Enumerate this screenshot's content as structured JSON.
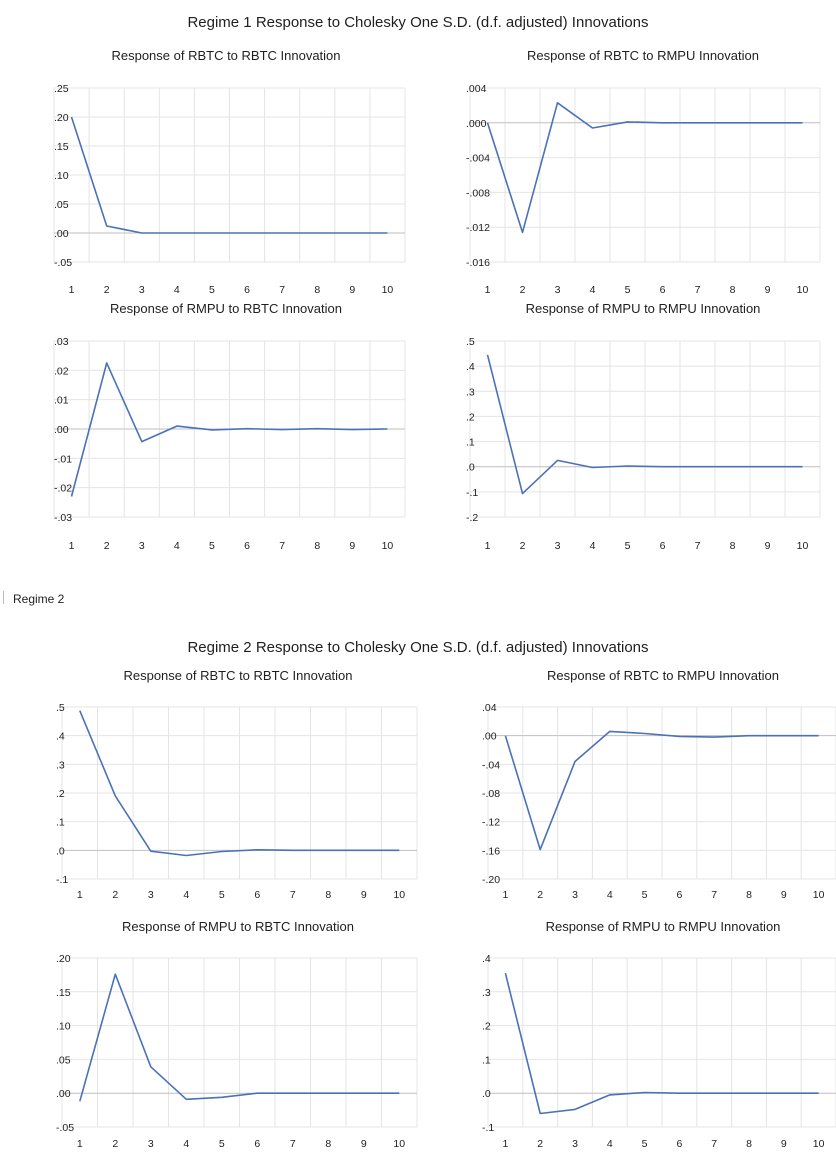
{
  "regime1_title": "Regime 1 Response to Cholesky One S.D. (d.f. adjusted) Innovations",
  "regime2_note": "Regime 2",
  "regime2_title": "Regime 2 Response to Cholesky One S.D. (d.f. adjusted) Innovations",
  "colors": {
    "series_line": "#4a72b8",
    "grid": "#e4e4e4"
  },
  "chart_data": [
    {
      "type": "line",
      "title": "Response of RBTC to RBTC Innovation",
      "x": [
        1,
        2,
        3,
        4,
        5,
        6,
        7,
        8,
        9,
        10
      ],
      "series": [
        {
          "values": [
            0.2,
            0.012,
            0.0,
            0.0,
            0.0,
            0.0,
            0.0,
            0.0,
            0.0,
            0.0
          ]
        }
      ],
      "ylim": [
        -0.05,
        0.25
      ],
      "yticks": [
        0.25,
        0.2,
        0.15,
        0.1,
        0.05,
        0.0,
        -0.05
      ],
      "yticklabels": [
        ".25",
        ".20",
        ".15",
        ".10",
        ".05",
        ".00",
        "-.05"
      ],
      "grid": true
    },
    {
      "type": "line",
      "title": "Response of RBTC to RMPU Innovation",
      "x": [
        1,
        2,
        3,
        4,
        5,
        6,
        7,
        8,
        9,
        10
      ],
      "series": [
        {
          "values": [
            0.0,
            -0.0126,
            0.0023,
            -0.0006,
            0.0001,
            0.0,
            0.0,
            0.0,
            0.0,
            0.0
          ]
        }
      ],
      "ylim": [
        -0.016,
        0.004
      ],
      "yticks": [
        0.004,
        0.0,
        -0.004,
        -0.008,
        -0.012,
        -0.016
      ],
      "yticklabels": [
        ".004",
        ".000",
        "-.004",
        "-.008",
        "-.012",
        "-.016"
      ],
      "grid": true
    },
    {
      "type": "line",
      "title": "Response of RMPU to RBTC Innovation",
      "x": [
        1,
        2,
        3,
        4,
        5,
        6,
        7,
        8,
        9,
        10
      ],
      "series": [
        {
          "values": [
            -0.023,
            0.0225,
            -0.0043,
            0.001,
            -0.0003,
            0.0001,
            -0.0002,
            0.0001,
            -0.0002,
            0.0
          ]
        }
      ],
      "ylim": [
        -0.03,
        0.03
      ],
      "yticks": [
        0.03,
        0.02,
        0.01,
        0.0,
        -0.01,
        -0.02,
        -0.03
      ],
      "yticklabels": [
        ".03",
        ".02",
        ".01",
        ".00",
        "-.01",
        "-.02",
        "-.03"
      ],
      "grid": true
    },
    {
      "type": "line",
      "title": "Response of RMPU to RMPU Innovation",
      "x": [
        1,
        2,
        3,
        4,
        5,
        6,
        7,
        8,
        9,
        10
      ],
      "series": [
        {
          "values": [
            0.445,
            -0.107,
            0.025,
            -0.003,
            0.003,
            0.0,
            0.0,
            0.0,
            0.0,
            0.0
          ]
        }
      ],
      "ylim": [
        -0.2,
        0.5
      ],
      "yticks": [
        0.5,
        0.4,
        0.3,
        0.2,
        0.1,
        0.0,
        -0.1,
        -0.2
      ],
      "yticklabels": [
        ".5",
        ".4",
        ".3",
        ".2",
        ".1",
        ".0",
        "-.1",
        "-.2"
      ],
      "grid": true
    },
    {
      "type": "line",
      "title": "Response of RBTC to RBTC Innovation",
      "x": [
        1,
        2,
        3,
        4,
        5,
        6,
        7,
        8,
        9,
        10
      ],
      "series": [
        {
          "values": [
            0.487,
            0.19,
            -0.003,
            -0.018,
            -0.004,
            0.002,
            0.0,
            0.0,
            0.0,
            0.0
          ]
        }
      ],
      "ylim": [
        -0.1,
        0.5
      ],
      "yticks": [
        0.5,
        0.4,
        0.3,
        0.2,
        0.1,
        0.0,
        -0.1
      ],
      "yticklabels": [
        ".5",
        ".4",
        ".3",
        ".2",
        ".1",
        ".0",
        "-.1"
      ],
      "grid": true
    },
    {
      "type": "line",
      "title": "Response of RBTC to RMPU Innovation",
      "x": [
        1,
        2,
        3,
        4,
        5,
        6,
        7,
        8,
        9,
        10
      ],
      "series": [
        {
          "values": [
            0.0,
            -0.159,
            -0.036,
            0.006,
            0.003,
            -0.001,
            -0.002,
            0.0,
            0.0,
            0.0
          ]
        }
      ],
      "ylim": [
        -0.2,
        0.04
      ],
      "yticks": [
        0.04,
        0.0,
        -0.04,
        -0.08,
        -0.12,
        -0.16,
        -0.2
      ],
      "yticklabels": [
        ".04",
        ".00",
        "-.04",
        "-.08",
        "-.12",
        "-.16",
        "-.20"
      ],
      "grid": true
    },
    {
      "type": "line",
      "title": "Response of RMPU to RBTC Innovation",
      "x": [
        1,
        2,
        3,
        4,
        5,
        6,
        7,
        8,
        9,
        10
      ],
      "series": [
        {
          "values": [
            -0.012,
            0.176,
            0.039,
            -0.009,
            -0.006,
            0.0,
            0.0,
            0.0,
            0.0,
            0.0
          ]
        }
      ],
      "ylim": [
        -0.05,
        0.2
      ],
      "yticks": [
        0.2,
        0.15,
        0.1,
        0.05,
        0.0,
        -0.05
      ],
      "yticklabels": [
        ".20",
        ".15",
        ".10",
        ".05",
        ".00",
        "-.05"
      ],
      "grid": true
    },
    {
      "type": "line",
      "title": "Response of RMPU to RMPU Innovation",
      "x": [
        1,
        2,
        3,
        4,
        5,
        6,
        7,
        8,
        9,
        10
      ],
      "series": [
        {
          "values": [
            0.355,
            -0.06,
            -0.048,
            -0.005,
            0.002,
            0.0,
            0.0,
            0.0,
            0.0,
            0.0
          ]
        }
      ],
      "ylim": [
        -0.1,
        0.4
      ],
      "yticks": [
        0.4,
        0.3,
        0.2,
        0.1,
        0.0,
        -0.1
      ],
      "yticklabels": [
        ".4",
        ".3",
        ".2",
        ".1",
        ".0",
        "-.1"
      ],
      "grid": true
    }
  ]
}
